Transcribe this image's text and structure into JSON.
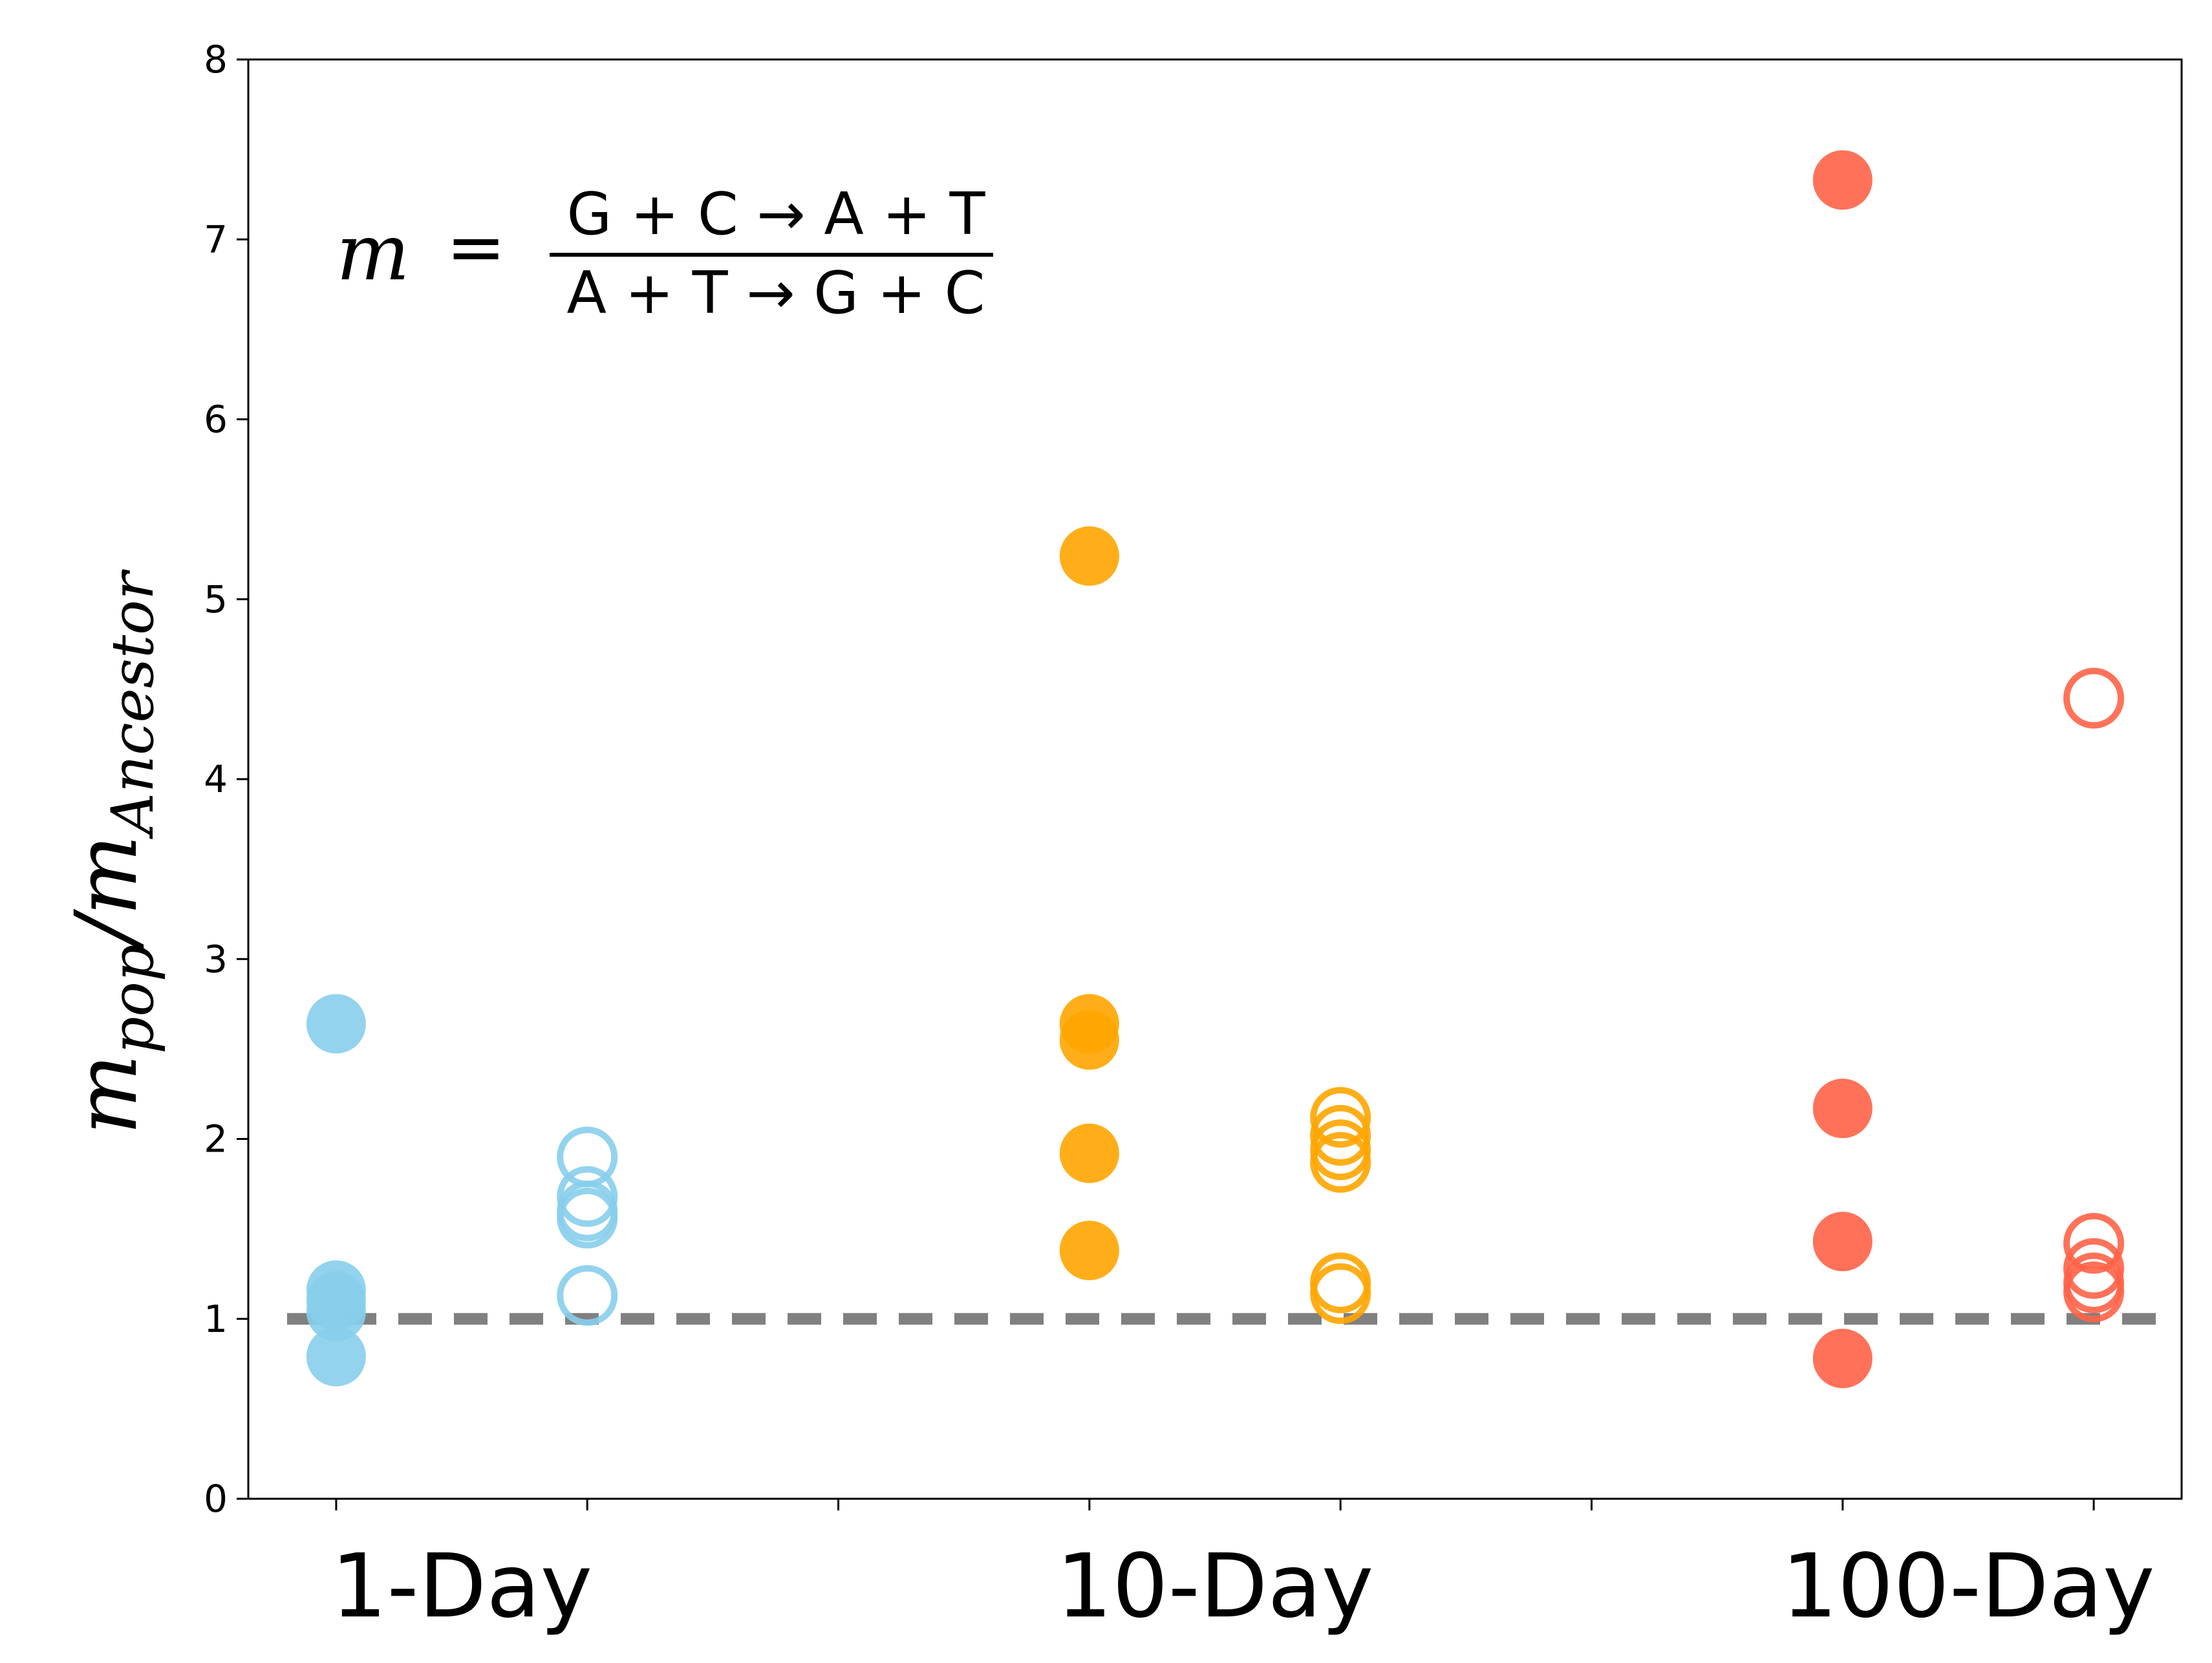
{
  "chart_data": {
    "type": "scatter",
    "title": "",
    "xlabel": "",
    "ylabel": {
      "base_left": "m",
      "sub_left": "pop",
      "slash": "/",
      "base_right": "m",
      "sub_right": "Ancestor"
    },
    "ylim": [
      0,
      8
    ],
    "yticks": [
      "0",
      "1",
      "2",
      "3",
      "4",
      "5",
      "6",
      "7",
      "8"
    ],
    "xtick_positions": [
      1,
      2,
      3,
      4,
      5,
      6,
      7,
      8
    ],
    "xlim": [
      0.65,
      8.35
    ],
    "group_labels": [
      {
        "label": "1-Day",
        "position": 1.5
      },
      {
        "label": "10-Day",
        "position": 4.5
      },
      {
        "label": "100-Day",
        "position": 7.5
      }
    ],
    "reference_line": {
      "y": 1.0,
      "style": "dashed",
      "color": "#808080"
    },
    "annotation": {
      "lhs": "m",
      "eq": "=",
      "numerator": "G + C → A + T",
      "denominator": "A + T → G + C"
    },
    "series": [
      {
        "x": 1,
        "filled": true,
        "color": "#87CEEB",
        "values": [
          2.64,
          1.16,
          1.1,
          1.04,
          0.79
        ]
      },
      {
        "x": 2,
        "filled": false,
        "color": "#87CEEB",
        "values": [
          1.9,
          1.68,
          1.6,
          1.56,
          1.13
        ]
      },
      {
        "x": 4,
        "filled": true,
        "color": "#FFA500",
        "values": [
          5.24,
          2.64,
          2.55,
          1.92,
          1.38
        ]
      },
      {
        "x": 5,
        "filled": false,
        "color": "#FFA500",
        "values": [
          2.12,
          2.02,
          1.94,
          1.87,
          1.2,
          1.14
        ]
      },
      {
        "x": 7,
        "filled": true,
        "color": "#FF6347",
        "values": [
          7.33,
          2.17,
          1.43,
          0.78
        ]
      },
      {
        "x": 8,
        "filled": false,
        "color": "#FF6347",
        "values": [
          4.45,
          1.42,
          1.28,
          1.2,
          1.15
        ]
      }
    ]
  }
}
